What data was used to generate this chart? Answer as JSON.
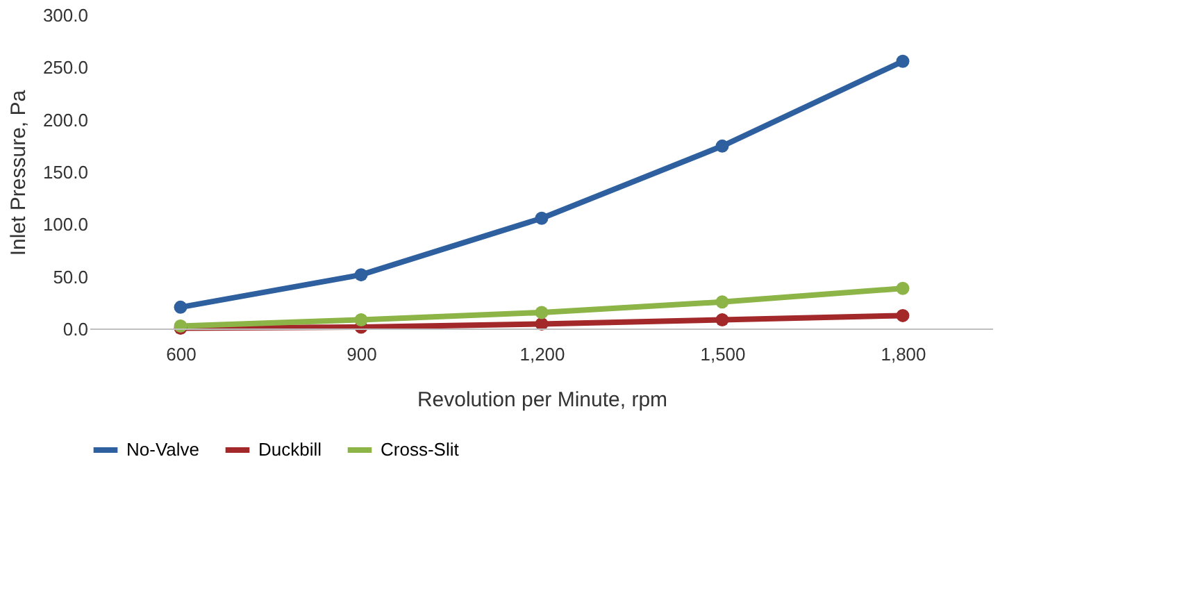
{
  "chart_data": {
    "type": "line",
    "xlabel": "Revolution per Minute, rpm",
    "ylabel": "Inlet Pressure, Pa",
    "categories": [
      "600",
      "900",
      "1,200",
      "1,500",
      "1,800"
    ],
    "series": [
      {
        "name": "No-Valve",
        "color": "#2e5f9e",
        "values": [
          21,
          52,
          106,
          175,
          256
        ]
      },
      {
        "name": "Duckbill",
        "color": "#a3282a",
        "values": [
          1,
          2,
          5,
          9,
          13
        ]
      },
      {
        "name": "Cross-Slit",
        "color": "#8cb447",
        "values": [
          3,
          9,
          16,
          26,
          39
        ]
      }
    ],
    "ylim": [
      0,
      300
    ],
    "yticks": [
      {
        "value": 0,
        "label": "0.0"
      },
      {
        "value": 50,
        "label": "50.0"
      },
      {
        "value": 100,
        "label": "100.0"
      },
      {
        "value": 150,
        "label": "150.0"
      },
      {
        "value": 200,
        "label": "200.0"
      },
      {
        "value": 250,
        "label": "250.0"
      },
      {
        "value": 300,
        "label": "300.0"
      }
    ],
    "grid": false,
    "legend": "bottom",
    "marker": "circle",
    "line_style": "solid"
  }
}
